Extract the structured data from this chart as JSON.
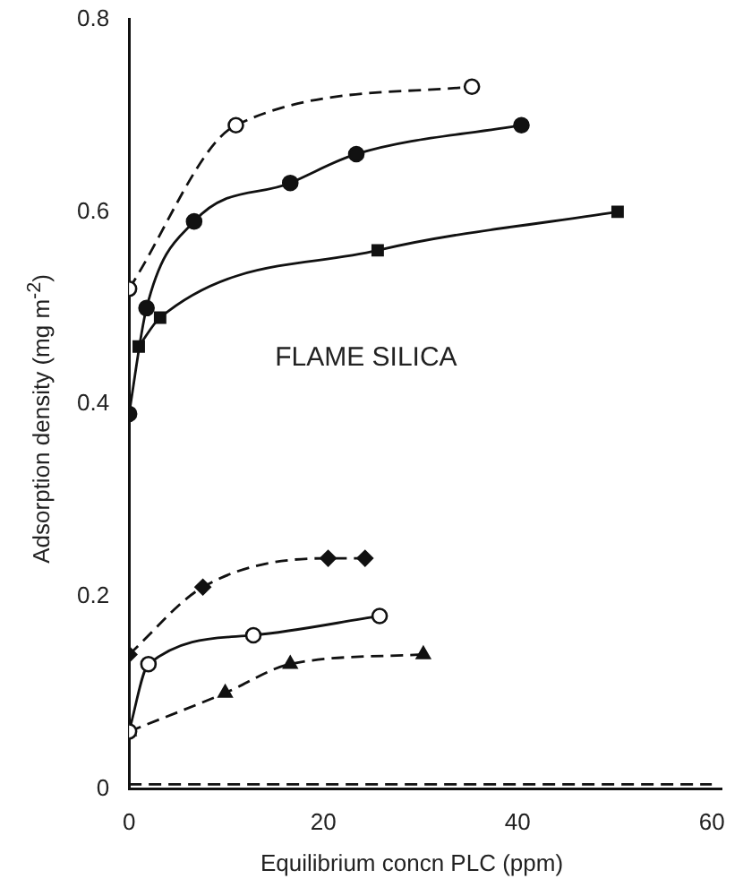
{
  "chart_data": {
    "type": "line",
    "xlabel": "Equilibrium concn PLC (ppm)",
    "ylabel": "Adsorption density (mg m$^{-2}$)",
    "annotations": [
      "FLAME SILICA"
    ],
    "xlim": [
      0,
      61
    ],
    "xticks": [
      0,
      20,
      40,
      60
    ],
    "ylim": [
      0,
      0.8
    ],
    "yticks": [
      0,
      0.2,
      0.4,
      0.6,
      0.8
    ],
    "grid": false,
    "legend": false,
    "series": [
      {
        "color": "#111111",
        "marker": "circle-open",
        "line_style": "dashed",
        "x": [
          0,
          11,
          35.3
        ],
        "values": [
          0.52,
          0.69,
          0.73
        ]
      },
      {
        "color": "#111111",
        "marker": "circle",
        "line_style": "solid",
        "x": [
          0,
          1.8,
          6.7,
          16.6,
          23.4,
          40.4
        ],
        "values": [
          0.39,
          0.5,
          0.59,
          0.63,
          0.66,
          0.69
        ]
      },
      {
        "color": "#111111",
        "marker": "square",
        "line_style": "solid",
        "x": [
          1,
          3.2,
          25.6,
          50.3
        ],
        "values": [
          0.46,
          0.49,
          0.56,
          0.6
        ]
      },
      {
        "color": "#111111",
        "marker": "diamond",
        "line_style": "dashed",
        "x": [
          0,
          7.6,
          20.5,
          24.3
        ],
        "values": [
          0.14,
          0.21,
          0.24,
          0.24
        ]
      },
      {
        "color": "#111111",
        "marker": "circle-open",
        "line_style": "solid",
        "x": [
          0,
          2,
          12.8,
          25.8
        ],
        "values": [
          0.06,
          0.13,
          0.16,
          0.18
        ]
      },
      {
        "color": "#111111",
        "marker": "triangle",
        "line_style": "dashed",
        "x": [
          0,
          9.9,
          16.6,
          30.3
        ],
        "values": [
          0.06,
          0.1,
          0.13,
          0.14
        ]
      },
      {
        "color": "#111111",
        "marker": "none",
        "line_style": "dashed",
        "x": [
          0,
          60
        ],
        "values": [
          0.005,
          0.005
        ]
      }
    ]
  }
}
